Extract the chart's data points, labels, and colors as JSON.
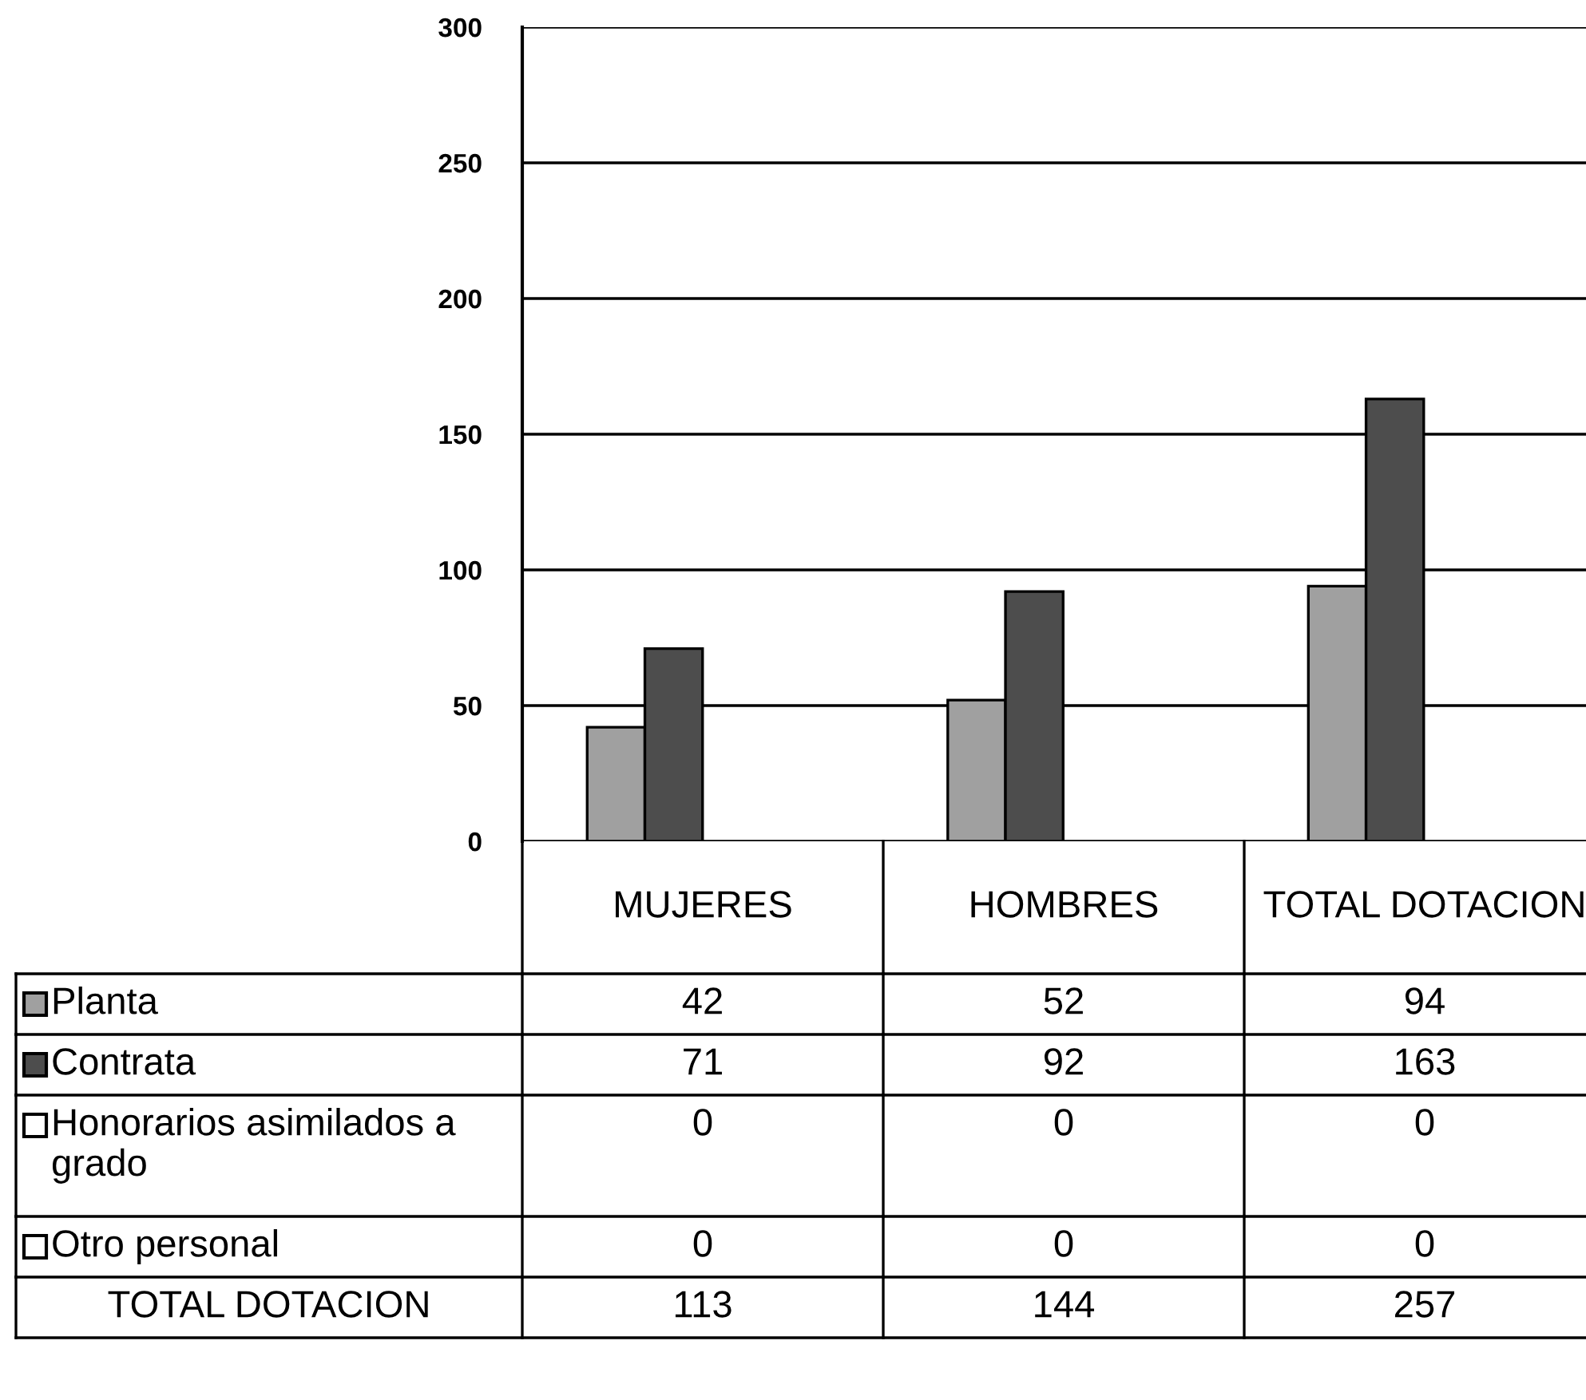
{
  "chart_data": {
    "type": "bar",
    "categories": [
      "MUJERES",
      "HOMBRES",
      "TOTAL DOTACION"
    ],
    "series": [
      {
        "name": "Planta",
        "color": "#a0a0a0",
        "values": [
          42,
          52,
          94
        ]
      },
      {
        "name": "Contrata",
        "color": "#4d4d4d",
        "values": [
          71,
          92,
          163
        ]
      },
      {
        "name": "Honorarios asimilados a grado",
        "color": "#ffffff",
        "values": [
          0,
          0,
          0
        ]
      },
      {
        "name": "Otro personal",
        "color": "#ffffff",
        "values": [
          0,
          0,
          0
        ]
      }
    ],
    "ylim": [
      0,
      300
    ],
    "yticks": [
      0,
      50,
      100,
      150,
      200,
      250,
      300
    ],
    "grid": "y",
    "data_labels": true,
    "legend": "bottom left",
    "annotations": [
      "TOTAL DOTACION",
      "113",
      "144",
      "257"
    ]
  }
}
